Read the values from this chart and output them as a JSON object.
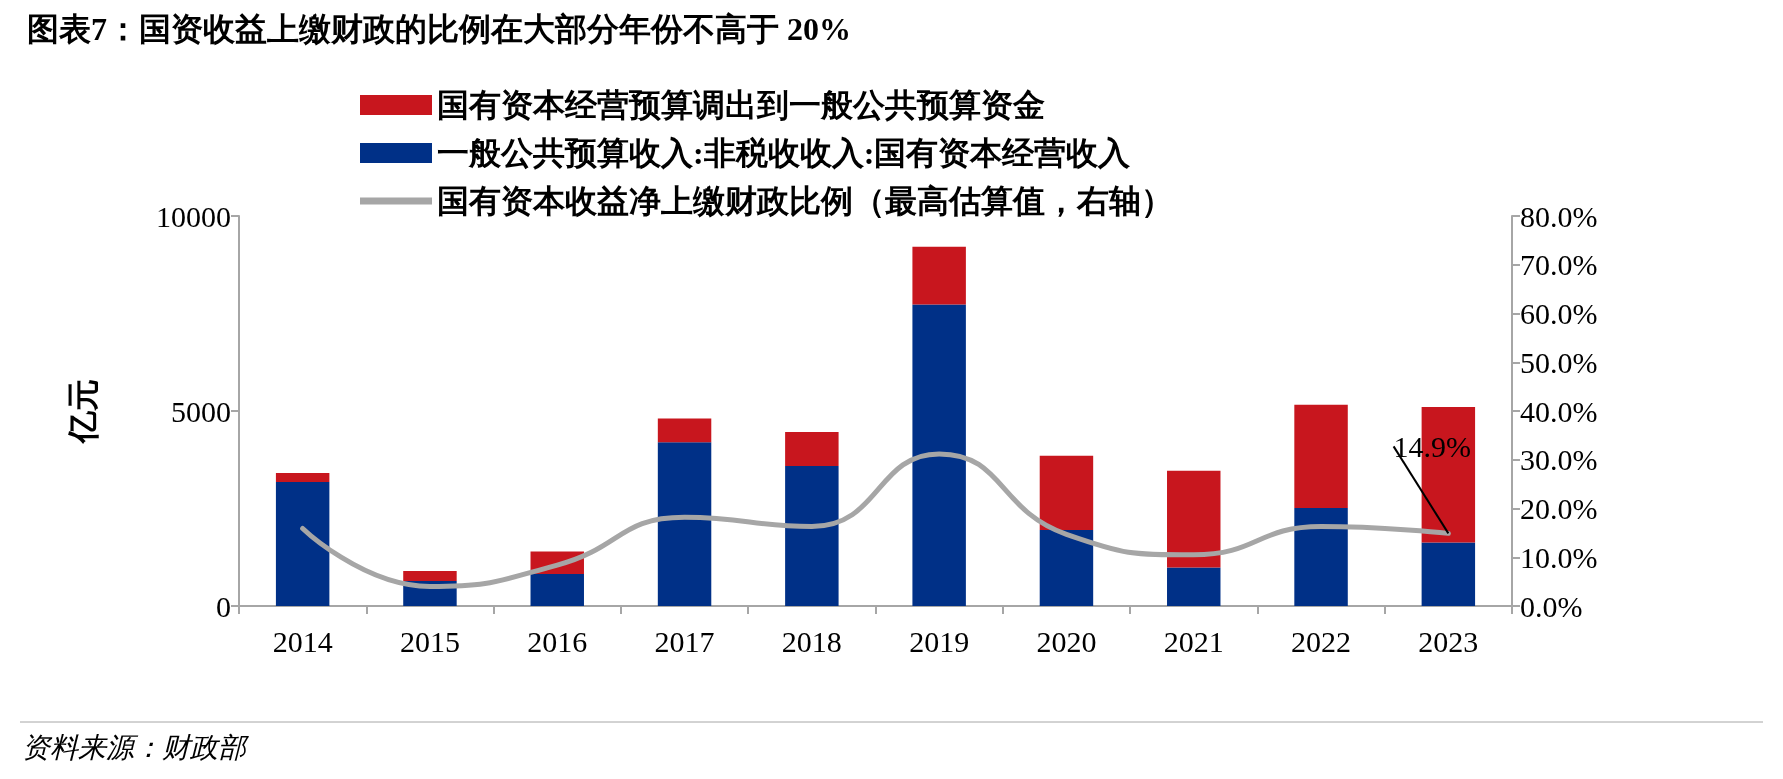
{
  "chart_data": {
    "type": "bar",
    "title": "图表7：国资收益上缴财政的比例在大部分年份不高于 20%",
    "ylabel": "亿元",
    "categories": [
      "2014",
      "2015",
      "2016",
      "2017",
      "2018",
      "2019",
      "2020",
      "2021",
      "2022",
      "2023"
    ],
    "stacked": true,
    "series": [
      {
        "name": "一般公共预算收入:非税收收入:国有资本经营收入",
        "color": "#003087",
        "values": [
          3180,
          640,
          820,
          4200,
          3590,
          7730,
          1950,
          990,
          2510,
          1630
        ]
      },
      {
        "name": "国有资本经营预算调出到一般公共预算资金",
        "color": "#c8161e",
        "values": [
          230,
          260,
          580,
          610,
          870,
          1480,
          1900,
          2480,
          2650,
          3470
        ]
      },
      {
        "name": "国有资本收益净上缴财政比例（最高估算值，右轴）",
        "type": "line",
        "axis": "y2",
        "color": "#a6a6a6",
        "values": [
          15.9,
          4.0,
          8.4,
          18.2,
          16.3,
          31.2,
          14.7,
          10.5,
          16.3,
          14.9
        ],
        "value_labels": [
          null,
          null,
          null,
          null,
          null,
          null,
          null,
          null,
          null,
          "14.9%"
        ]
      }
    ],
    "ylim": [
      0,
      10000
    ],
    "yticks": [
      0,
      5000,
      10000
    ],
    "y2lim": [
      0,
      80
    ],
    "y2ticks": [
      {
        "value": 0,
        "label": "0.0%"
      },
      {
        "value": 10,
        "label": "10.0%"
      },
      {
        "value": 20,
        "label": "20.0%"
      },
      {
        "value": 30,
        "label": "30.0%"
      },
      {
        "value": 40,
        "label": "40.0%"
      },
      {
        "value": 50,
        "label": "50.0%"
      },
      {
        "value": 60,
        "label": "60.0%"
      },
      {
        "value": 70,
        "label": "70.0%"
      },
      {
        "value": 80,
        "label": "80.0%"
      }
    ],
    "annotations": [
      "资料来源：财政部"
    ],
    "legend": "top",
    "grid": false,
    "marker": "none"
  }
}
